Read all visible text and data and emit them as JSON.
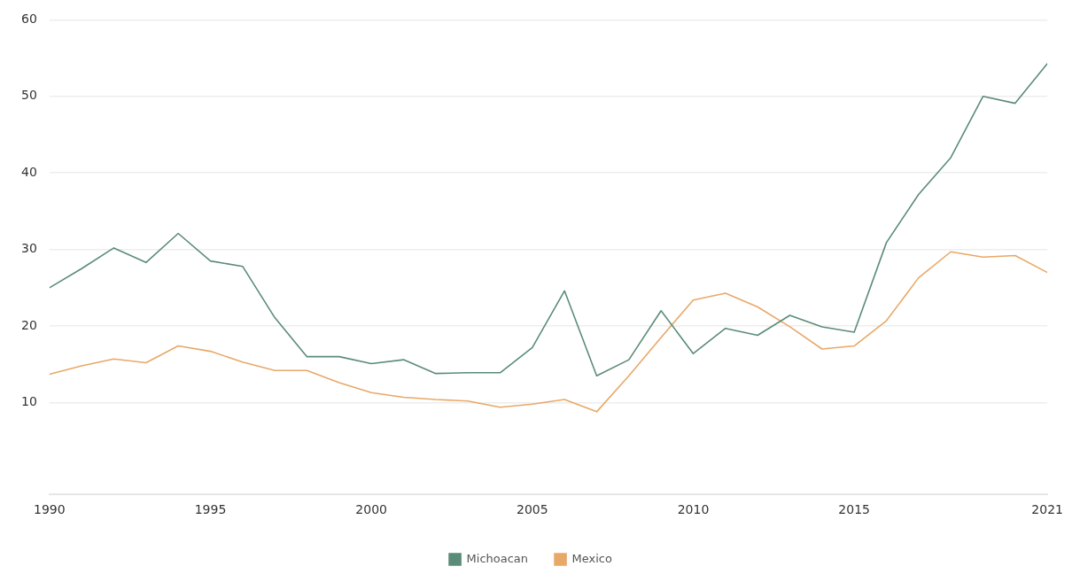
{
  "chart_data": {
    "type": "line",
    "x": [
      1990,
      1991,
      1992,
      1993,
      1994,
      1995,
      1996,
      1997,
      1998,
      1999,
      2000,
      2001,
      2002,
      2003,
      2004,
      2005,
      2006,
      2007,
      2008,
      2009,
      2010,
      2011,
      2012,
      2013,
      2014,
      2015,
      2016,
      2017,
      2018,
      2019,
      2020,
      2021
    ],
    "series": [
      {
        "name": "Michoacan",
        "color": "#5b8c77",
        "values": [
          25,
          27.5,
          30.2,
          28.3,
          32.1,
          28.5,
          27.8,
          21.1,
          16,
          16,
          15.1,
          15.6,
          13.8,
          13.9,
          13.9,
          17.2,
          24.6,
          13.5,
          15.6,
          22,
          16.4,
          19.7,
          18.8,
          21.4,
          19.9,
          19.2,
          30.9,
          37.2,
          42,
          50,
          49.1,
          54.3
        ]
      },
      {
        "name": "Mexico",
        "color": "#e8a868",
        "values": [
          13.7,
          14.8,
          15.7,
          15.2,
          17.4,
          16.7,
          15.3,
          14.2,
          14.2,
          12.6,
          11.3,
          10.7,
          10.4,
          10.2,
          9.4,
          9.8,
          10.4,
          8.8,
          13.5,
          18.5,
          23.4,
          24.3,
          22.5,
          19.9,
          17,
          17.4,
          20.7,
          26.3,
          29.7,
          29,
          29.2,
          27
        ]
      }
    ],
    "xlim": [
      1990,
      2021
    ],
    "xticks": [
      1990,
      1995,
      2000,
      2005,
      2010,
      2015,
      2021
    ],
    "ylim": [
      -2,
      60
    ],
    "yticks": [
      10,
      20,
      30,
      40,
      50,
      60
    ],
    "grid": "y",
    "legend": "bottom",
    "marker": "none",
    "line_style": "solid"
  }
}
